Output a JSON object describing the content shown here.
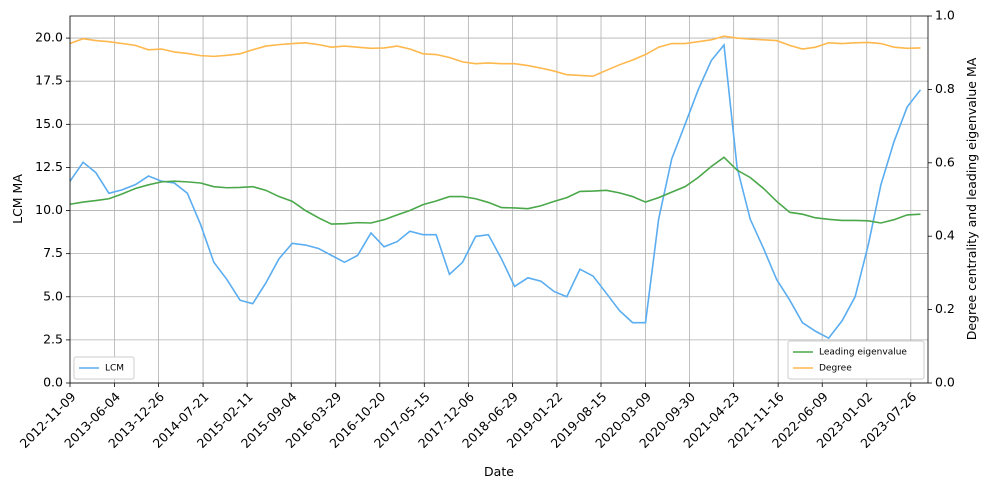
{
  "chart_data": {
    "type": "line",
    "xlabel": "Date",
    "ylabel": "LCM MA",
    "y2label": "Degree centrality and leading eigenvalue MA",
    "x": [
      "2012-11-09",
      "2013-01-09",
      "2013-03-09",
      "2013-05-09",
      "2013-07-09",
      "2013-09-09",
      "2013-11-09",
      "2014-01-09",
      "2014-03-09",
      "2014-05-09",
      "2014-07-09",
      "2014-09-09",
      "2014-11-09",
      "2015-01-09",
      "2015-03-09",
      "2015-05-09",
      "2015-07-09",
      "2015-09-09",
      "2015-11-09",
      "2016-01-09",
      "2016-03-09",
      "2016-05-09",
      "2016-07-09",
      "2016-09-09",
      "2016-11-09",
      "2017-01-09",
      "2017-03-09",
      "2017-05-09",
      "2017-07-09",
      "2017-09-09",
      "2017-11-09",
      "2018-01-09",
      "2018-03-09",
      "2018-05-09",
      "2018-07-09",
      "2018-09-09",
      "2018-11-09",
      "2019-01-09",
      "2019-03-09",
      "2019-05-09",
      "2019-07-09",
      "2019-09-09",
      "2019-11-09",
      "2020-01-09",
      "2020-03-09",
      "2020-05-09",
      "2020-07-09",
      "2020-09-09",
      "2020-11-09",
      "2021-01-09",
      "2021-03-09",
      "2021-05-09",
      "2021-07-09",
      "2021-09-09",
      "2021-11-09",
      "2022-01-09",
      "2022-03-09",
      "2022-05-09",
      "2022-07-09",
      "2022-09-09",
      "2022-11-09",
      "2023-01-09",
      "2023-03-09",
      "2023-05-09",
      "2023-07-09",
      "2023-09-09"
    ],
    "xlim": [
      "2012-11-09",
      "2023-10-14"
    ],
    "xticks": [
      "2012-11-09",
      "2013-06-04",
      "2013-12-26",
      "2014-07-21",
      "2015-02-11",
      "2015-09-04",
      "2016-03-29",
      "2016-10-20",
      "2017-05-15",
      "2017-12-06",
      "2018-06-29",
      "2019-01-22",
      "2019-08-15",
      "2020-03-09",
      "2020-09-30",
      "2021-04-23",
      "2021-11-16",
      "2022-06-09",
      "2023-01-02",
      "2023-07-26"
    ],
    "ylim": [
      0,
      21.28
    ],
    "yticks": [
      {
        "value": 0,
        "label": "0.0"
      },
      {
        "value": 2.5,
        "label": "2.5"
      },
      {
        "value": 5,
        "label": "5.0"
      },
      {
        "value": 7.5,
        "label": "7.5"
      },
      {
        "value": 10,
        "label": "10.0"
      },
      {
        "value": 12.5,
        "label": "12.5"
      },
      {
        "value": 15,
        "label": "15.0"
      },
      {
        "value": 17.5,
        "label": "17.5"
      },
      {
        "value": 20,
        "label": "20.0"
      }
    ],
    "y2lim": [
      0,
      1
    ],
    "y2ticks": [
      {
        "value": 0,
        "label": "0.0"
      },
      {
        "value": 0.2,
        "label": "0.2"
      },
      {
        "value": 0.4,
        "label": "0.4"
      },
      {
        "value": 0.6,
        "label": "0.6"
      },
      {
        "value": 0.8,
        "label": "0.8"
      },
      {
        "value": 1,
        "label": "1.0"
      }
    ],
    "grid": true,
    "legend_loc": "lower left",
    "legend2_loc": "lower right",
    "series": [
      {
        "name": "LCM",
        "color": "#5aadf0",
        "axis": "y",
        "values": [
          11.7,
          12.8,
          12.2,
          11.0,
          11.2,
          11.5,
          12.0,
          11.7,
          11.6,
          11.0,
          9.2,
          7.0,
          6.0,
          4.8,
          4.6,
          5.8,
          7.2,
          8.1,
          8.0,
          7.8,
          7.4,
          7.0,
          7.4,
          8.7,
          7.9,
          8.2,
          8.8,
          8.6,
          8.6,
          6.3,
          7.0,
          8.5,
          8.6,
          7.2,
          5.6,
          6.1,
          5.9,
          5.3,
          5.0,
          6.6,
          6.2,
          5.2,
          4.2,
          3.5,
          3.5,
          9.5,
          13.0,
          15.0,
          17.0,
          18.7,
          19.6,
          12.5,
          9.5,
          7.8,
          6.0,
          4.8,
          3.5,
          3.0,
          2.6,
          3.6,
          5.0,
          8.0,
          11.5,
          14.0,
          16.0,
          17.0
        ]
      },
      {
        "name": "Leading eigenvalue",
        "color": "#4aa84a",
        "axis": "y2",
        "values": [
          0.487,
          0.493,
          0.497,
          0.502,
          0.515,
          0.53,
          0.54,
          0.548,
          0.55,
          0.548,
          0.545,
          0.535,
          0.532,
          0.533,
          0.535,
          0.525,
          0.508,
          0.495,
          0.47,
          0.45,
          0.433,
          0.434,
          0.437,
          0.436,
          0.445,
          0.458,
          0.47,
          0.486,
          0.496,
          0.508,
          0.508,
          0.502,
          0.492,
          0.478,
          0.477,
          0.475,
          0.483,
          0.495,
          0.505,
          0.522,
          0.523,
          0.525,
          0.518,
          0.508,
          0.493,
          0.505,
          0.52,
          0.535,
          0.56,
          0.59,
          0.615,
          0.58,
          0.56,
          0.53,
          0.495,
          0.465,
          0.46,
          0.45,
          0.446,
          0.443,
          0.443,
          0.442,
          0.436,
          0.445,
          0.458,
          0.46
        ]
      },
      {
        "name": "Degree",
        "color": "#ffb84d",
        "axis": "y2",
        "values": [
          0.925,
          0.938,
          0.933,
          0.93,
          0.925,
          0.92,
          0.908,
          0.91,
          0.902,
          0.898,
          0.892,
          0.89,
          0.893,
          0.897,
          0.908,
          0.918,
          0.922,
          0.925,
          0.927,
          0.922,
          0.915,
          0.918,
          0.915,
          0.912,
          0.913,
          0.918,
          0.91,
          0.897,
          0.895,
          0.887,
          0.875,
          0.87,
          0.872,
          0.87,
          0.87,
          0.865,
          0.858,
          0.85,
          0.84,
          0.838,
          0.836,
          0.852,
          0.867,
          0.88,
          0.895,
          0.915,
          0.925,
          0.925,
          0.93,
          0.935,
          0.945,
          0.94,
          0.937,
          0.935,
          0.933,
          0.92,
          0.91,
          0.915,
          0.927,
          0.925,
          0.927,
          0.928,
          0.925,
          0.915,
          0.912,
          0.913
        ]
      }
    ]
  }
}
